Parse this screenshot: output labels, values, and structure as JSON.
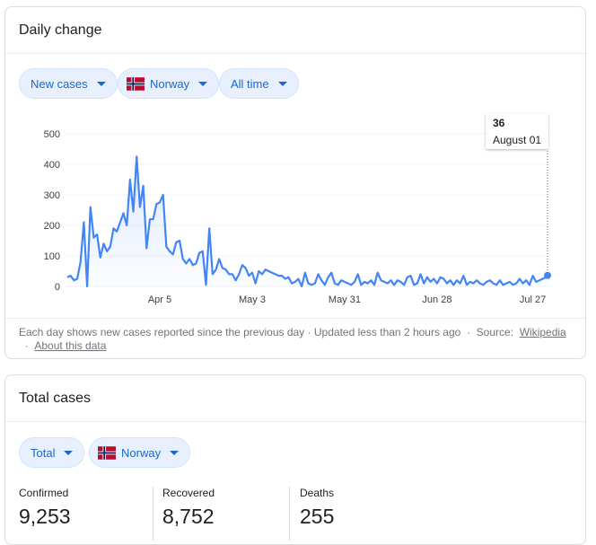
{
  "daily": {
    "title": "Daily change",
    "chips": [
      "New cases",
      "Norway",
      "All time"
    ]
  },
  "chart_data": {
    "type": "line",
    "color": "#4285f4",
    "grid": true,
    "ylim": [
      0,
      500
    ],
    "yticks": [
      0,
      100,
      200,
      300,
      400,
      500
    ],
    "categories": [
      null,
      null,
      null,
      null,
      null,
      null,
      null,
      null,
      null,
      null,
      null,
      null,
      null,
      null,
      null,
      null,
      null,
      null,
      null,
      null,
      null,
      null,
      null,
      null,
      null,
      null,
      null,
      null,
      "Apr 5",
      null,
      null,
      null,
      null,
      null,
      null,
      null,
      null,
      null,
      null,
      null,
      null,
      null,
      null,
      null,
      null,
      null,
      null,
      null,
      null,
      null,
      null,
      null,
      null,
      null,
      null,
      null,
      "May 3",
      null,
      null,
      null,
      null,
      null,
      null,
      null,
      null,
      null,
      null,
      null,
      null,
      null,
      null,
      null,
      null,
      null,
      null,
      null,
      null,
      null,
      null,
      null,
      null,
      null,
      null,
      null,
      "May 31",
      null,
      null,
      null,
      null,
      null,
      null,
      null,
      null,
      null,
      null,
      null,
      null,
      null,
      null,
      null,
      null,
      null,
      null,
      null,
      null,
      null,
      null,
      null,
      null,
      null,
      null,
      null,
      "Jun 28",
      null,
      null,
      null,
      null,
      null,
      null,
      null,
      null,
      null,
      null,
      null,
      null,
      null,
      null,
      null,
      null,
      null,
      null,
      null,
      null,
      null,
      null,
      null,
      null,
      null,
      null,
      null,
      null,
      "Jul 27",
      null,
      null,
      null,
      null,
      null
    ],
    "values": [
      30,
      35,
      20,
      25,
      80,
      210,
      0,
      260,
      160,
      170,
      95,
      140,
      115,
      130,
      190,
      180,
      210,
      240,
      200,
      350,
      245,
      425,
      260,
      330,
      125,
      220,
      220,
      270,
      275,
      300,
      130,
      115,
      105,
      145,
      150,
      90,
      75,
      90,
      70,
      75,
      110,
      115,
      5,
      190,
      40,
      55,
      90,
      60,
      55,
      40,
      40,
      20,
      40,
      70,
      60,
      35,
      45,
      10,
      50,
      40,
      55,
      50,
      45,
      40,
      35,
      35,
      25,
      30,
      10,
      15,
      25,
      0,
      45,
      10,
      5,
      10,
      40,
      20,
      5,
      30,
      45,
      10,
      5,
      20,
      15,
      10,
      5,
      15,
      40,
      5,
      15,
      10,
      20,
      5,
      45,
      20,
      15,
      10,
      20,
      5,
      20,
      15,
      5,
      30,
      35,
      5,
      10,
      40,
      10,
      30,
      15,
      25,
      10,
      30,
      25,
      10,
      20,
      5,
      20,
      10,
      35,
      5,
      15,
      10,
      20,
      10,
      5,
      15,
      20,
      10,
      5,
      20,
      5,
      10,
      15,
      5,
      10,
      25,
      10,
      20,
      5,
      35,
      15,
      20,
      25,
      30,
      36
    ],
    "tooltip_date": "August 01"
  },
  "footer": {
    "note": "Each day shows new cases reported since the previous day",
    "sep": "·",
    "updated": "Updated less than 2 hours ago",
    "source": "Source:",
    "link": "Wikipedia",
    "about": "About this data"
  },
  "total": {
    "title": "Total cases",
    "chips": [
      "Total",
      "Norway"
    ],
    "stats": [
      {
        "label": "Confirmed",
        "value": "9,253"
      },
      {
        "label": "Recovered",
        "value": "8,752"
      },
      {
        "label": "Deaths",
        "value": "255"
      }
    ]
  }
}
